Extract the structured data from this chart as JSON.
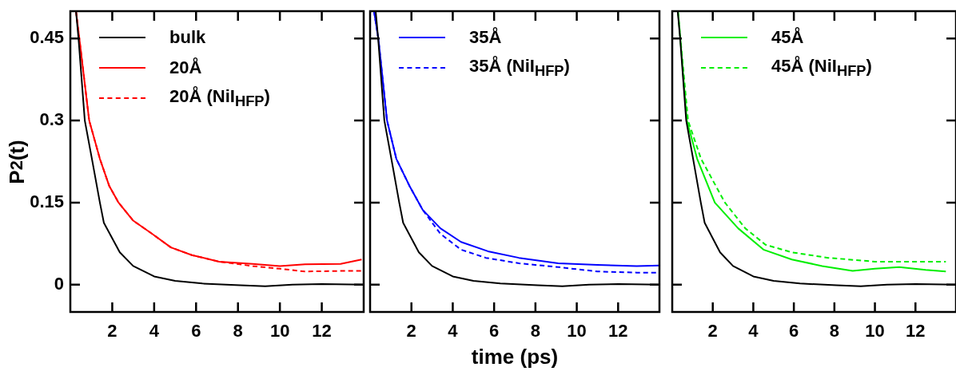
{
  "chart_data": [
    {
      "type": "line",
      "ylabel": "P$_{2}$(t)",
      "xlim": [
        0,
        14
      ],
      "xticks": [
        2,
        4,
        6,
        8,
        10,
        12
      ],
      "ylim": [
        -0.05,
        0.5
      ],
      "yticks": [
        0,
        0.15,
        0.3,
        0.45
      ],
      "legend": "top left",
      "line_style": "solid",
      "series": [
        {
          "name": "bulk",
          "color": "#000000",
          "x": [
            0.27,
            0.39,
            0.69,
            1.03,
            1.41,
            1.6,
            2.36,
            3.0,
            4.0,
            5.0,
            6.3,
            8.1,
            9.3,
            10.6,
            12,
            14
          ],
          "values": [
            0.5,
            0.45,
            0.3,
            0.23,
            0.15,
            0.113,
            0.059,
            0.034,
            0.015,
            0.007,
            0.002,
            -0.001,
            -0.003,
            0,
            0.001,
            0
          ]
        },
        {
          "name": "20Å",
          "color": "#ff0000",
          "x": [
            0.27,
            0.43,
            0.9,
            1.41,
            1.85,
            2.3,
            3.0,
            3.9,
            4.8,
            5.8,
            7.1,
            8.7,
            10,
            11.2,
            12.9,
            13.9
          ],
          "values": [
            0.5,
            0.45,
            0.3,
            0.23,
            0.181,
            0.15,
            0.117,
            0.093,
            0.068,
            0.054,
            0.042,
            0.038,
            0.034,
            0.037,
            0.038,
            0.046
          ]
        },
        {
          "name": "20Å (NiI$_{HFP}$)",
          "color": "#ff0000",
          "line_style": "dashed",
          "x": [
            0.27,
            0.43,
            0.9,
            1.41,
            1.85,
            2.3,
            3.0,
            3.9,
            4.8,
            5.8,
            7.1,
            8.7,
            10,
            11.2,
            12.9,
            13.9
          ],
          "values": [
            0.5,
            0.45,
            0.3,
            0.23,
            0.181,
            0.15,
            0.117,
            0.093,
            0.068,
            0.054,
            0.042,
            0.034,
            0.029,
            0.024,
            0.025,
            0.025
          ]
        }
      ]
    },
    {
      "type": "line",
      "xlabel": "time (ps)",
      "xlim": [
        0,
        14
      ],
      "xticks": [
        2,
        4,
        6,
        8,
        10,
        12
      ],
      "ylim": [
        -0.05,
        0.5
      ],
      "yticks": [
        0,
        0.15,
        0.3,
        0.45
      ],
      "tick_labels": "x",
      "legend": "top left",
      "line_style": "solid",
      "series": [
        {
          "color": "#000000",
          "x": [
            0.27,
            0.39,
            0.69,
            1.03,
            1.41,
            1.6,
            2.36,
            3.0,
            4.0,
            5.0,
            6.3,
            8.1,
            9.3,
            10.6,
            12,
            14
          ],
          "values": [
            0.5,
            0.45,
            0.3,
            0.23,
            0.15,
            0.113,
            0.059,
            0.034,
            0.015,
            0.007,
            0.002,
            -0.001,
            -0.003,
            0,
            0.001,
            0
          ]
        },
        {
          "name": "35Å",
          "color": "#0000ff",
          "x": [
            0.19,
            0.4,
            0.82,
            1.27,
            1.9,
            2.54,
            3.4,
            4.4,
            5.7,
            7.2,
            9.1,
            11.0,
            12.9,
            14
          ],
          "values": [
            0.5,
            0.45,
            0.3,
            0.23,
            0.181,
            0.137,
            0.103,
            0.078,
            0.061,
            0.049,
            0.039,
            0.036,
            0.034,
            0.035
          ]
        },
        {
          "name": "35Å (NiI$_{HFP}$)",
          "color": "#0000ff",
          "line_style": "dashed",
          "x": [
            0.19,
            0.4,
            0.82,
            1.27,
            1.9,
            2.54,
            3.4,
            4.4,
            5.6,
            7.2,
            9.1,
            11.0,
            12.9,
            14
          ],
          "values": [
            0.5,
            0.45,
            0.3,
            0.23,
            0.181,
            0.137,
            0.093,
            0.064,
            0.049,
            0.039,
            0.032,
            0.024,
            0.022,
            0.022
          ]
        }
      ]
    },
    {
      "type": "line",
      "xlim": [
        0,
        14
      ],
      "xticks": [
        2,
        4,
        6,
        8,
        10,
        12
      ],
      "ylim": [
        -0.05,
        0.5
      ],
      "yticks": [
        0,
        0.15,
        0.3,
        0.45
      ],
      "tick_labels": "x",
      "legend": "top left",
      "line_style": "solid",
      "series": [
        {
          "color": "#000000",
          "x": [
            0.27,
            0.39,
            0.69,
            1.03,
            1.41,
            1.6,
            2.36,
            3.0,
            4.0,
            5.0,
            6.3,
            8.1,
            9.3,
            10.6,
            12,
            14
          ],
          "values": [
            0.5,
            0.45,
            0.3,
            0.23,
            0.15,
            0.113,
            0.059,
            0.034,
            0.015,
            0.007,
            0.002,
            -0.001,
            -0.003,
            0,
            0.001,
            0
          ]
        },
        {
          "name": "45Å",
          "color": "#00ee00",
          "x": [
            0.28,
            0.4,
            0.72,
            1.23,
            2.1,
            3.25,
            4.5,
            5.9,
            7.4,
            8.9,
            10,
            11.2,
            12.5,
            13.5
          ],
          "values": [
            0.5,
            0.45,
            0.3,
            0.23,
            0.15,
            0.103,
            0.064,
            0.046,
            0.034,
            0.025,
            0.029,
            0.032,
            0.027,
            0.024
          ]
        },
        {
          "name": "45Å (NiI$_{HFP}$)",
          "color": "#00ee00",
          "line_style": "dashed",
          "x": [
            0.28,
            0.78,
            1.42,
            2.6,
            3.6,
            4.6,
            5.9,
            7.7,
            10,
            12.5,
            13.5
          ],
          "values": [
            0.5,
            0.3,
            0.23,
            0.15,
            0.103,
            0.073,
            0.059,
            0.049,
            0.042,
            0.042,
            0.042
          ]
        }
      ]
    }
  ]
}
